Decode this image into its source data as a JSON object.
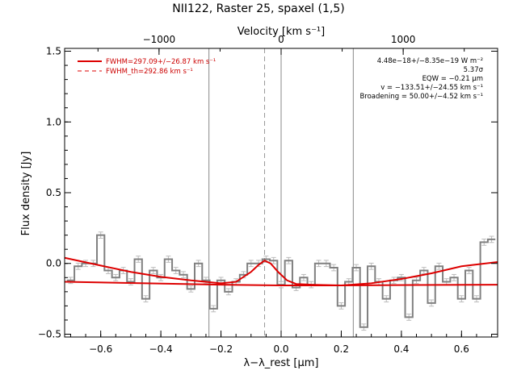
{
  "chart_data": {
    "type": "line",
    "title": "NII122, Raster 25, spaxel (1,5)",
    "top_axis": {
      "label": "Velocity [km s⁻¹]",
      "ticks": [
        -1000,
        0,
        1000
      ],
      "tick_labels": [
        "−1000",
        "0",
        "1000"
      ]
    },
    "xlabel": "λ−λ_rest [μm]",
    "ylabel": "Flux density [Jy]",
    "xlim": [
      -0.72,
      0.72
    ],
    "ylim": [
      -0.52,
      1.52
    ],
    "x_ticks": [
      -0.6,
      -0.4,
      -0.2,
      0.0,
      0.2,
      0.4,
      0.6
    ],
    "x_tick_labels": [
      "−0.6",
      "−0.4",
      "−0.2",
      "0.0",
      "0.2",
      "0.4",
      "0.6"
    ],
    "y_ticks": [
      -0.5,
      0.0,
      0.5,
      1.0,
      1.5
    ],
    "y_tick_labels": [
      "−0.5",
      "0.0",
      "0.5",
      "1.0",
      "1.5"
    ],
    "vlines": {
      "solid": [
        -0.24,
        0.0,
        0.24
      ],
      "dashed": [
        -0.055
      ]
    },
    "series": [
      {
        "name": "data",
        "style": "step",
        "color": "#808080",
        "x": [
          -0.7,
          -0.675,
          -0.65,
          -0.625,
          -0.6,
          -0.575,
          -0.55,
          -0.525,
          -0.5,
          -0.475,
          -0.45,
          -0.425,
          -0.4,
          -0.375,
          -0.35,
          -0.325,
          -0.3,
          -0.275,
          -0.25,
          -0.225,
          -0.2,
          -0.175,
          -0.15,
          -0.125,
          -0.1,
          -0.075,
          -0.05,
          -0.025,
          0.0,
          0.025,
          0.05,
          0.075,
          0.1,
          0.125,
          0.15,
          0.175,
          0.2,
          0.225,
          0.25,
          0.275,
          0.3,
          0.325,
          0.35,
          0.375,
          0.4,
          0.425,
          0.45,
          0.475,
          0.5,
          0.525,
          0.55,
          0.575,
          0.6,
          0.625,
          0.65,
          0.675,
          0.7
        ],
        "y": [
          -0.12,
          -0.02,
          0.0,
          0.0,
          0.2,
          -0.05,
          -0.1,
          -0.05,
          -0.13,
          0.03,
          -0.25,
          -0.05,
          -0.1,
          0.03,
          -0.05,
          -0.08,
          -0.18,
          0.0,
          -0.12,
          -0.32,
          -0.12,
          -0.2,
          -0.13,
          -0.08,
          0.0,
          0.0,
          0.03,
          0.02,
          -0.15,
          0.02,
          -0.17,
          -0.1,
          -0.15,
          0.0,
          0.0,
          -0.03,
          -0.3,
          -0.13,
          -0.03,
          -0.45,
          -0.02,
          -0.13,
          -0.25,
          -0.12,
          -0.1,
          -0.38,
          -0.12,
          -0.05,
          -0.28,
          -0.02,
          -0.13,
          -0.1,
          -0.25,
          -0.05,
          -0.25,
          0.15,
          0.17
        ]
      },
      {
        "name": "",
        "style": "line",
        "color": "#dd0000",
        "x": [
          -0.72,
          -0.6,
          -0.5,
          -0.4,
          -0.3,
          -0.2,
          -0.15,
          -0.1,
          -0.075,
          -0.055,
          -0.035,
          -0.01,
          0.02,
          0.05,
          0.1,
          0.2,
          0.3,
          0.4,
          0.5,
          0.6,
          0.72
        ],
        "y": [
          0.04,
          -0.015,
          -0.06,
          -0.095,
          -0.12,
          -0.14,
          -0.13,
          -0.06,
          -0.01,
          0.02,
          0.0,
          -0.06,
          -0.12,
          -0.145,
          -0.15,
          -0.155,
          -0.14,
          -0.11,
          -0.07,
          -0.02,
          0.01
        ]
      },
      {
        "name": "",
        "style": "line",
        "color": "#dd0000",
        "x": [
          -0.72,
          -0.2,
          0.0,
          0.2,
          0.72
        ],
        "y": [
          -0.13,
          -0.15,
          -0.155,
          -0.155,
          -0.15
        ]
      }
    ],
    "legend": {
      "position": "top-left",
      "entries": [
        {
          "label": "FWHM=297.09+/−26.87 km s⁻¹",
          "style": "solid",
          "color": "#dd0000"
        },
        {
          "label": "FWHM_th=292.86 km s⁻¹",
          "style": "dashed",
          "color": "#dd0000"
        }
      ]
    },
    "annotations": [
      "4.48e−18+/−8.35e−19 W m⁻²",
      "5.37σ",
      "EQW = −0.21 μm",
      "v = −133.51+/−24.55 km s⁻¹",
      "Broadening = 50.00+/−4.52 km s⁻¹"
    ]
  }
}
